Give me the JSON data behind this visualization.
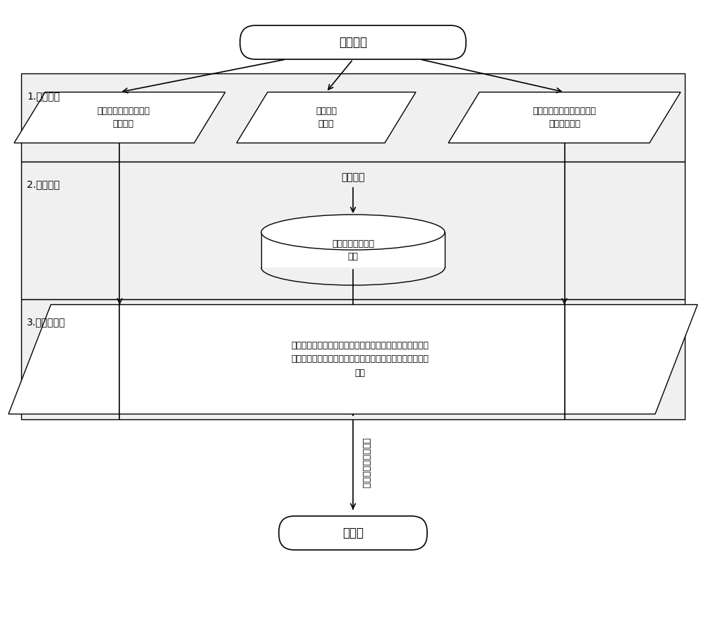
{
  "bg_color": "#ffffff",
  "line_color": "#000000",
  "box_fill": "#ffffff",
  "section_fill": "#f0f0f0",
  "title": "台架实验",
  "box1_text": "手柄位置与主阀开度的\n对应关系",
  "box2_text": "发动机万\n有特性",
  "box3_text": "不同转速不同排量不同压力\n下的油泵效率",
  "section1_label": "1.台架实验",
  "calibration_title": "整车标定",
  "box4_text": "发动机的修正万有\n特性",
  "section2_label": "2.整车标定",
  "box5_line1": "满足客户对流量的需求和负载对压力的需求条件下，以发动",
  "box5_line2": "机燃油消耗率与油泵效率比値最低为目标的最佳转速与排量",
  "box5_line3": "组合",
  "section3_label": "3.制作数据表",
  "arrow_label": "最佳转速与排量组合",
  "final_box_text": "发动机",
  "fs": 12,
  "fs_small": 10,
  "fs_tiny": 9
}
